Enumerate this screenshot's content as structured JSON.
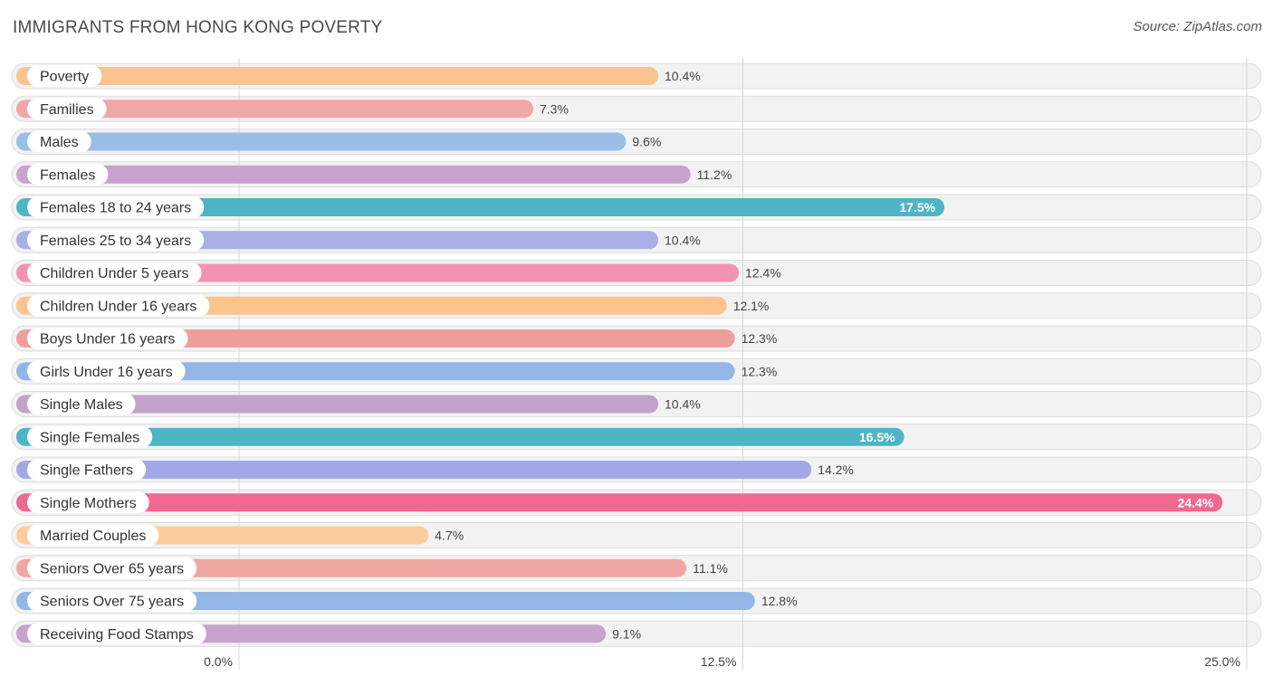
{
  "header": {
    "title": "IMMIGRANTS FROM HONG KONG POVERTY",
    "source": "Source: ZipAtlas.com"
  },
  "chart_data": {
    "type": "bar",
    "orientation": "horizontal",
    "title": "IMMIGRANTS FROM HONG KONG POVERTY",
    "xlabel": "",
    "ylabel": "",
    "xlim": [
      0,
      25
    ],
    "ticks": [
      0,
      12.5,
      25
    ],
    "tick_labels": [
      "0.0%",
      "12.5%",
      "25.0%"
    ],
    "grid": true,
    "categories": [
      "Poverty",
      "Families",
      "Males",
      "Females",
      "Females 18 to 24 years",
      "Females 25 to 34 years",
      "Children Under 5 years",
      "Children Under 16 years",
      "Boys Under 16 years",
      "Girls Under 16 years",
      "Single Males",
      "Single Females",
      "Single Fathers",
      "Single Mothers",
      "Married Couples",
      "Seniors Over 65 years",
      "Seniors Over 75 years",
      "Receiving Food Stamps"
    ],
    "values": [
      10.4,
      7.3,
      9.6,
      11.2,
      17.5,
      10.4,
      12.4,
      12.1,
      12.3,
      12.3,
      10.4,
      16.5,
      14.2,
      24.4,
      4.7,
      11.1,
      12.8,
      9.1
    ],
    "value_labels": [
      "10.4%",
      "7.3%",
      "9.6%",
      "11.2%",
      "17.5%",
      "10.4%",
      "12.4%",
      "12.1%",
      "12.3%",
      "12.3%",
      "10.4%",
      "16.5%",
      "14.2%",
      "24.4%",
      "4.7%",
      "11.1%",
      "12.8%",
      "9.1%"
    ],
    "colors": [
      "#fbc48e",
      "#f0a8a6",
      "#9bbde6",
      "#c6a4cb",
      "#4db5c4",
      "#a9b0e6",
      "#f393b3",
      "#fbc48e",
      "#ef9f9b",
      "#92b7e6",
      "#c2a2c9",
      "#4db5c4",
      "#a2a8e6",
      "#f0698f",
      "#fbcd9c",
      "#f0a7a1",
      "#92b7e6",
      "#c6a4cb"
    ],
    "label_inside": [
      false,
      false,
      false,
      false,
      true,
      false,
      false,
      false,
      false,
      false,
      false,
      true,
      false,
      true,
      false,
      false,
      false,
      false
    ]
  }
}
